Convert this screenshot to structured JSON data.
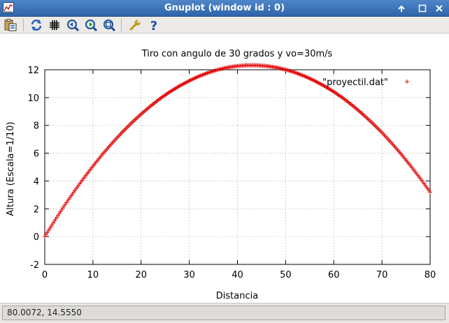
{
  "window": {
    "title": "Gnuplot (window id : 0)",
    "buttons": {
      "help": "?",
      "minimize": "–",
      "close": "×"
    }
  },
  "toolbar": {
    "items": [
      {
        "name": "copy-to-clipboard",
        "icon": "clipboard-icon"
      },
      {
        "name": "replot",
        "icon": "refresh-icon"
      },
      {
        "name": "toggle-grid",
        "icon": "grid-icon"
      },
      {
        "name": "previous-zoom",
        "icon": "zoom-previous-icon"
      },
      {
        "name": "next-zoom",
        "icon": "zoom-next-icon"
      },
      {
        "name": "autoscale",
        "icon": "zoom-autoscale-icon"
      },
      {
        "name": "preferences",
        "icon": "wrench-icon"
      },
      {
        "name": "help",
        "icon": "help-icon"
      }
    ]
  },
  "status": {
    "coords": "80.0072,  14.5550"
  },
  "chart_data": {
    "type": "scatter",
    "title": "Tiro con angulo de 30 grados y vo=30m/s",
    "xlabel": "Distancia",
    "ylabel": "Altura (Escala=1/10)",
    "xlim": [
      0,
      80
    ],
    "ylim": [
      -2,
      12
    ],
    "xticks": [
      "0",
      "10",
      "20",
      "30",
      "40",
      "50",
      "60",
      "70",
      "80"
    ],
    "yticks": [
      "-2",
      "0",
      "2",
      "4",
      "6",
      "8",
      "10",
      "12"
    ],
    "grid": true,
    "legend_position": "top-right",
    "marker": "+",
    "series": [
      {
        "name": "\"proyectil.dat\"",
        "color": "#e00000",
        "x": [
          0,
          2,
          4,
          6,
          8,
          10,
          12,
          14,
          16,
          18,
          20,
          22,
          24,
          26,
          28,
          30,
          32,
          34,
          36,
          38,
          40,
          42,
          44,
          46,
          48,
          50,
          52,
          54,
          56,
          58,
          60,
          62,
          64,
          66,
          68,
          70,
          72,
          74,
          76,
          78,
          80
        ],
        "y": [
          0,
          1.12,
          2.19,
          3.2,
          4.16,
          5.07,
          5.93,
          6.73,
          7.48,
          8.17,
          8.81,
          9.4,
          9.94,
          10.42,
          10.84,
          11.21,
          11.53,
          11.8,
          12.01,
          12.17,
          12.27,
          12.32,
          12.32,
          12.27,
          12.17,
          12.01,
          11.8,
          11.53,
          11.21,
          10.84,
          10.42,
          9.94,
          9.4,
          8.81,
          8.17,
          7.48,
          6.73,
          5.93,
          5.07,
          4.16,
          3.2
        ]
      }
    ]
  }
}
